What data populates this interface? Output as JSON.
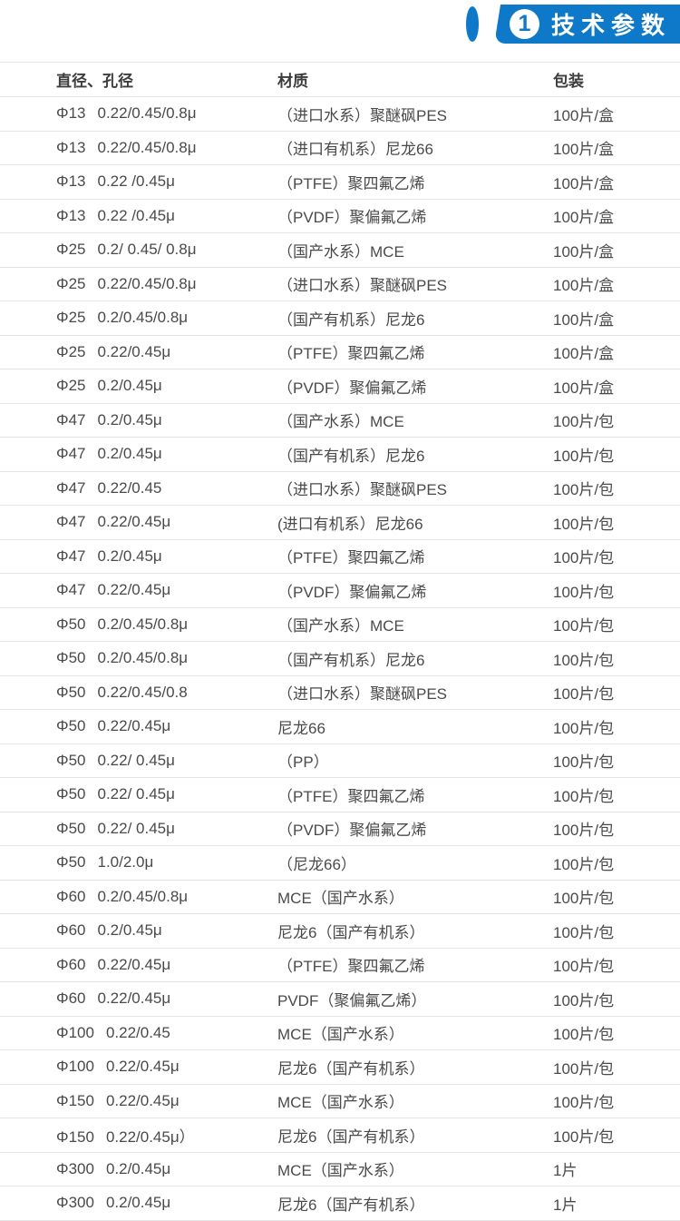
{
  "accent_color": "#0e79c9",
  "header": {
    "number": "1",
    "title": "技术参数"
  },
  "table": {
    "columns": [
      "直径、孔径",
      "材质",
      "包装"
    ],
    "rows": [
      {
        "d": "Φ13",
        "p": "0.22/0.45/0.8μ",
        "m": "（进口水系）聚醚砜PES",
        "pk": "100片/盒"
      },
      {
        "d": "Φ13",
        "p": "0.22/0.45/0.8μ",
        "m": "（进口有机系）尼龙66",
        "pk": "100片/盒"
      },
      {
        "d": "Φ13",
        "p": "0.22 /0.45μ",
        "m": "（PTFE）聚四氟乙烯",
        "pk": "100片/盒"
      },
      {
        "d": "Φ13",
        "p": "0.22 /0.45μ",
        "m": "（PVDF）聚偏氟乙烯",
        "pk": "100片/盒"
      },
      {
        "d": "Φ25",
        "p": "0.2/ 0.45/ 0.8μ",
        "m": "（国产水系）MCE",
        "pk": "100片/盒"
      },
      {
        "d": "Φ25",
        "p": "0.22/0.45/0.8μ",
        "m": "（进口水系）聚醚砜PES",
        "pk": "100片/盒"
      },
      {
        "d": "Φ25",
        "p": "0.2/0.45/0.8μ",
        "m": "（国产有机系）尼龙6",
        "pk": "100片/盒"
      },
      {
        "d": "Φ25",
        "p": "0.22/0.45μ",
        "m": "（PTFE）聚四氟乙烯",
        "pk": "100片/盒"
      },
      {
        "d": "Φ25",
        "p": "0.2/0.45μ",
        "m": "（PVDF）聚偏氟乙烯",
        "pk": "100片/盒"
      },
      {
        "d": "Φ47",
        "p": "0.2/0.45μ",
        "m": "（国产水系）MCE",
        "pk": "100片/包"
      },
      {
        "d": "Φ47",
        "p": "0.2/0.45μ",
        "m": "（国产有机系）尼龙6",
        "pk": "100片/包"
      },
      {
        "d": "Φ47",
        "p": "0.22/0.45",
        "m": "（进口水系）聚醚砜PES",
        "pk": "100片/包"
      },
      {
        "d": "Φ47",
        "p": "0.22/0.45μ",
        "m": "(进口有机系）尼龙66",
        "pk": "100片/包"
      },
      {
        "d": "Φ47",
        "p": "0.2/0.45μ",
        "m": "（PTFE）聚四氟乙烯",
        "pk": "100片/包"
      },
      {
        "d": "Φ47",
        "p": "0.22/0.45μ",
        "m": "（PVDF）聚偏氟乙烯",
        "pk": "100片/包"
      },
      {
        "d": "Φ50",
        "p": "0.2/0.45/0.8μ",
        "m": "（国产水系）MCE",
        "pk": "100片/包"
      },
      {
        "d": "Φ50",
        "p": "0.2/0.45/0.8μ",
        "m": "（国产有机系）尼龙6",
        "pk": "100片/包"
      },
      {
        "d": "Φ50",
        "p": "0.22/0.45/0.8",
        "m": "（进口水系）聚醚砜PES",
        "pk": "100片/包"
      },
      {
        "d": "Φ50",
        "p": "0.22/0.45μ",
        "m": "尼龙66",
        "pk": "100片/包"
      },
      {
        "d": "Φ50",
        "p": "0.22/ 0.45μ",
        "m": "（PP）",
        "pk": "100片/包"
      },
      {
        "d": "Φ50",
        "p": "0.22/ 0.45μ",
        "m": "（PTFE）聚四氟乙烯",
        "pk": "100片/包"
      },
      {
        "d": "Φ50",
        "p": "0.22/ 0.45μ",
        "m": "（PVDF）聚偏氟乙烯",
        "pk": "100片/包"
      },
      {
        "d": "Φ50",
        "p": "1.0/2.0μ",
        "m": "（尼龙66）",
        "pk": "100片/包"
      },
      {
        "d": "Φ60",
        "p": "0.2/0.45/0.8μ",
        "m": "MCE（国产水系）",
        "pk": "100片/包"
      },
      {
        "d": "Φ60",
        "p": "0.2/0.45μ",
        "m": "尼龙6（国产有机系）",
        "pk": "100片/包"
      },
      {
        "d": "Φ60",
        "p": "0.22/0.45μ",
        "m": "（PTFE）聚四氟乙烯",
        "pk": "100片/包"
      },
      {
        "d": "Φ60",
        "p": "0.22/0.45μ",
        "m": "PVDF（聚偏氟乙烯）",
        "pk": "100片/包"
      },
      {
        "d": "Φ100",
        "p": "0.22/0.45",
        "m": "MCE（国产水系）",
        "pk": "100片/包"
      },
      {
        "d": "Φ100",
        "p": "0.22/0.45μ",
        "m": "尼龙6（国产有机系）",
        "pk": "100片/包"
      },
      {
        "d": "Φ150",
        "p": "0.22/0.45μ",
        "m": "MCE（国产水系）",
        "pk": "100片/包"
      },
      {
        "d": "Φ150",
        "p": "0.22/0.45μ）",
        "m": "尼龙6（国产有机系）",
        "pk": "100片/包"
      },
      {
        "d": "Φ300",
        "p": "0.2/0.45μ",
        "m": "MCE（国产水系）",
        "pk": "1片"
      },
      {
        "d": "Φ300",
        "p": "0.2/0.45μ",
        "m": "尼龙6（国产有机系）",
        "pk": "1片"
      }
    ]
  }
}
